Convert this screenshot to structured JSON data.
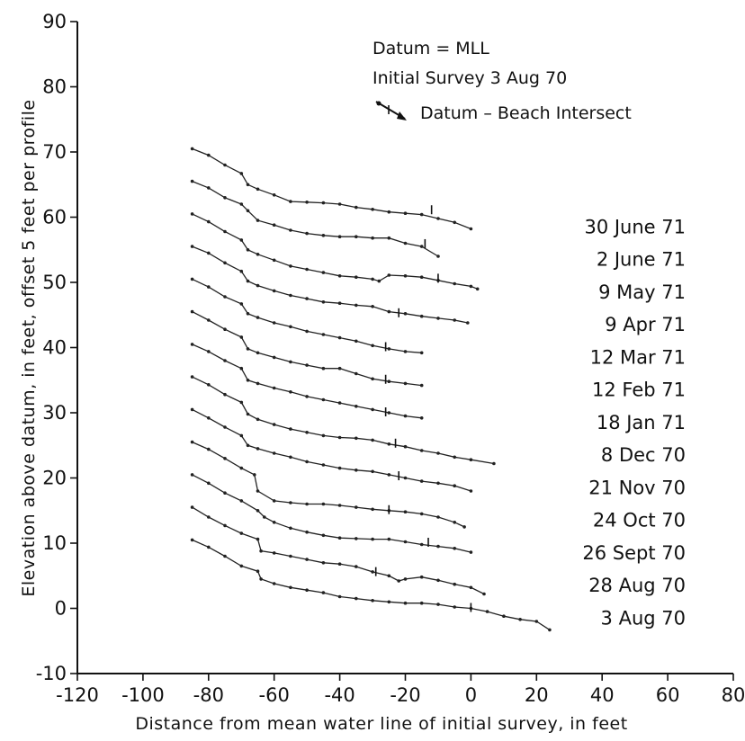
{
  "chart_data": {
    "type": "line",
    "xlabel": "Distance from mean water line of initial survey, in feet",
    "ylabel": "Elevation above datum, in feet, offset 5 feet per profile",
    "xlim": [
      -120,
      80
    ],
    "ylim": [
      -10,
      90
    ],
    "x_ticks": [
      "-120",
      "-100",
      "-80",
      "-60",
      "-40",
      "-20",
      "0",
      "20",
      "40",
      "60",
      "80"
    ],
    "y_ticks": [
      "-10",
      "0",
      "10",
      "20",
      "30",
      "40",
      "50",
      "60",
      "70",
      "80",
      "90"
    ],
    "grid": false,
    "annotations": {
      "datum": "Datum = MLL",
      "initial_survey": "Initial Survey  3 Aug 70",
      "intersect": "Datum – Beach Intersect"
    },
    "series": [
      {
        "name": "30 June 71",
        "x": [
          -85,
          -80,
          -75,
          -70,
          -68,
          -65,
          -60,
          -55,
          -50,
          -45,
          -40,
          -35,
          -30,
          -25,
          -20,
          -15,
          -10,
          -5,
          0
        ],
        "y": [
          70.5,
          69.5,
          68,
          66.7,
          65,
          64.3,
          63.4,
          62.4,
          62.3,
          62.2,
          62,
          61.5,
          61.2,
          60.8,
          60.6,
          60.4,
          59.8,
          59.2,
          58.2
        ]
      },
      {
        "name": "2 June 71",
        "x": [
          -85,
          -80,
          -75,
          -70,
          -68,
          -65,
          -60,
          -55,
          -50,
          -45,
          -40,
          -35,
          -30,
          -25,
          -20,
          -15,
          -10
        ],
        "y": [
          65.5,
          64.5,
          63,
          62,
          61,
          59.5,
          58.8,
          58,
          57.5,
          57.2,
          57,
          57,
          56.8,
          56.8,
          56,
          55.5,
          54
        ]
      },
      {
        "name": "9 May 71",
        "x": [
          -85,
          -80,
          -75,
          -70,
          -68,
          -65,
          -60,
          -55,
          -50,
          -45,
          -40,
          -35,
          -30,
          -28,
          -25,
          -20,
          -15,
          -10,
          -5,
          0,
          2
        ],
        "y": [
          60.5,
          59.3,
          57.8,
          56.5,
          55,
          54.3,
          53.4,
          52.5,
          52,
          51.5,
          51,
          50.8,
          50.5,
          50.2,
          51.1,
          51,
          50.8,
          50.3,
          49.8,
          49.4,
          49
        ]
      },
      {
        "name": "9 Apr 71",
        "x": [
          -85,
          -80,
          -75,
          -70,
          -68,
          -65,
          -60,
          -55,
          -50,
          -45,
          -40,
          -35,
          -30,
          -25,
          -20,
          -15,
          -10,
          -5,
          -1
        ],
        "y": [
          55.5,
          54.5,
          53,
          51.7,
          50.2,
          49.5,
          48.7,
          48,
          47.5,
          47,
          46.8,
          46.5,
          46.3,
          45.5,
          45.2,
          44.8,
          44.5,
          44.2,
          43.8
        ]
      },
      {
        "name": "12 Mar 71",
        "x": [
          -85,
          -80,
          -75,
          -70,
          -68,
          -65,
          -60,
          -55,
          -50,
          -45,
          -40,
          -35,
          -30,
          -25,
          -20,
          -15
        ],
        "y": [
          50.5,
          49.3,
          47.8,
          46.7,
          45.2,
          44.6,
          43.8,
          43.2,
          42.5,
          42,
          41.5,
          41,
          40.3,
          39.8,
          39.4,
          39.2
        ]
      },
      {
        "name": "12 Feb 71",
        "x": [
          -85,
          -80,
          -75,
          -70,
          -68,
          -65,
          -60,
          -55,
          -50,
          -45,
          -40,
          -35,
          -30,
          -25,
          -20,
          -15
        ],
        "y": [
          45.5,
          44.2,
          42.8,
          41.6,
          39.8,
          39.2,
          38.5,
          37.8,
          37.3,
          36.8,
          36.8,
          36,
          35.2,
          34.8,
          34.5,
          34.2
        ]
      },
      {
        "name": "18 Jan 71",
        "x": [
          -85,
          -80,
          -75,
          -70,
          -68,
          -65,
          -60,
          -55,
          -50,
          -45,
          -40,
          -35,
          -30,
          -25,
          -20,
          -15
        ],
        "y": [
          40.5,
          39.4,
          38,
          36.8,
          35,
          34.5,
          33.8,
          33.2,
          32.5,
          32,
          31.5,
          31,
          30.5,
          30,
          29.5,
          29.2
        ]
      },
      {
        "name": "8 Dec 70",
        "x": [
          -85,
          -80,
          -75,
          -70,
          -68,
          -65,
          -60,
          -55,
          -50,
          -45,
          -40,
          -35,
          -30,
          -25,
          -20,
          -15,
          -10,
          -5,
          0,
          7
        ],
        "y": [
          35.5,
          34.3,
          32.8,
          31.6,
          29.8,
          29,
          28.2,
          27.5,
          27,
          26.5,
          26.2,
          26.1,
          25.8,
          25.2,
          24.8,
          24.2,
          23.8,
          23.2,
          22.8,
          22.2
        ]
      },
      {
        "name": "21 Nov 70",
        "x": [
          -85,
          -80,
          -75,
          -70,
          -68,
          -65,
          -60,
          -55,
          -50,
          -45,
          -40,
          -35,
          -30,
          -25,
          -20,
          -15,
          -10,
          -5,
          0
        ],
        "y": [
          30.5,
          29.2,
          27.8,
          26.5,
          25,
          24.5,
          23.8,
          23.2,
          22.5,
          22,
          21.5,
          21.2,
          21,
          20.5,
          20,
          19.5,
          19.2,
          18.8,
          18
        ]
      },
      {
        "name": "24 Oct 70",
        "x": [
          -85,
          -80,
          -75,
          -70,
          -66,
          -65,
          -60,
          -55,
          -50,
          -45,
          -40,
          -35,
          -30,
          -25,
          -20,
          -15,
          -10,
          -5,
          -2
        ],
        "y": [
          25.5,
          24.4,
          23,
          21.5,
          20.5,
          18,
          16.5,
          16.2,
          16,
          16,
          15.8,
          15.5,
          15.2,
          15,
          14.8,
          14.5,
          14,
          13.2,
          12.5
        ]
      },
      {
        "name": "26 Sept 70",
        "x": [
          -85,
          -80,
          -75,
          -70,
          -65,
          -63,
          -60,
          -55,
          -50,
          -45,
          -40,
          -35,
          -30,
          -25,
          -20,
          -15,
          -10,
          -5,
          0
        ],
        "y": [
          20.5,
          19.2,
          17.7,
          16.5,
          15,
          14,
          13.2,
          12.3,
          11.7,
          11.2,
          10.8,
          10.7,
          10.6,
          10.6,
          10.2,
          9.8,
          9.5,
          9.2,
          8.6
        ]
      },
      {
        "name": "28 Aug 70",
        "x": [
          -85,
          -80,
          -75,
          -70,
          -65,
          -64,
          -60,
          -55,
          -50,
          -45,
          -40,
          -35,
          -30,
          -25,
          -22,
          -20,
          -15,
          -10,
          -5,
          0,
          4
        ],
        "y": [
          15.5,
          14,
          12.7,
          11.5,
          10.6,
          8.8,
          8.5,
          8,
          7.5,
          7,
          6.8,
          6.4,
          5.6,
          5,
          4.2,
          4.5,
          4.8,
          4.3,
          3.7,
          3.2,
          2.2
        ]
      },
      {
        "name": "3 Aug 70",
        "x": [
          -85,
          -80,
          -75,
          -70,
          -65,
          -64,
          -60,
          -55,
          -50,
          -45,
          -40,
          -35,
          -30,
          -25,
          -20,
          -15,
          -10,
          -5,
          0,
          5,
          10,
          15,
          20,
          24
        ],
        "y": [
          10.5,
          9.4,
          8,
          6.5,
          5.7,
          4.5,
          3.8,
          3.2,
          2.8,
          2.4,
          1.8,
          1.5,
          1.2,
          1,
          0.8,
          0.8,
          0.6,
          0.2,
          0,
          -0.5,
          -1.2,
          -1.7,
          -2,
          -3.3
        ]
      }
    ],
    "intersects": [
      {
        "x": -12,
        "y": 61.0
      },
      {
        "x": -14,
        "y": 55.8
      },
      {
        "x": -10,
        "y": 50.5
      },
      {
        "x": -22,
        "y": 45.2
      },
      {
        "x": -26,
        "y": 40.0
      },
      {
        "x": -26,
        "y": 35.0
      },
      {
        "x": -26,
        "y": 30.0
      },
      {
        "x": -23,
        "y": 25.2
      },
      {
        "x": -22,
        "y": 20.2
      },
      {
        "x": -25,
        "y": 15.0
      },
      {
        "x": -13,
        "y": 10.0
      },
      {
        "x": -29,
        "y": 5.5
      },
      {
        "x": 0,
        "y": 0.0
      }
    ]
  }
}
